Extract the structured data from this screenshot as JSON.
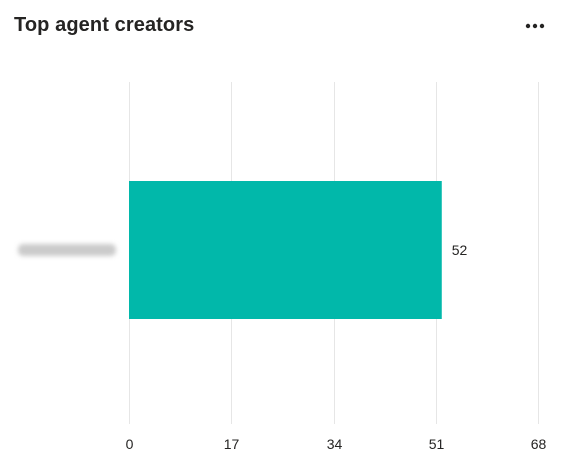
{
  "card": {
    "title": "Top agent creators",
    "menu_icon": "more-horizontal-icon"
  },
  "colors": {
    "bar": "#01b8aa",
    "gridline": "#e6e6e6",
    "text": "#252423",
    "redacted_label": "#b9b9b9"
  },
  "chart_data": {
    "type": "bar",
    "orientation": "horizontal",
    "categories": [
      ""
    ],
    "values": [
      52
    ],
    "data_labels": [
      "52"
    ],
    "xlim": [
      0,
      68
    ],
    "x_ticks": [
      0,
      17,
      34,
      51,
      68
    ],
    "x_tick_labels": [
      "0",
      "17",
      "34",
      "51",
      "68"
    ],
    "grid": true,
    "category_label_redacted": true
  }
}
